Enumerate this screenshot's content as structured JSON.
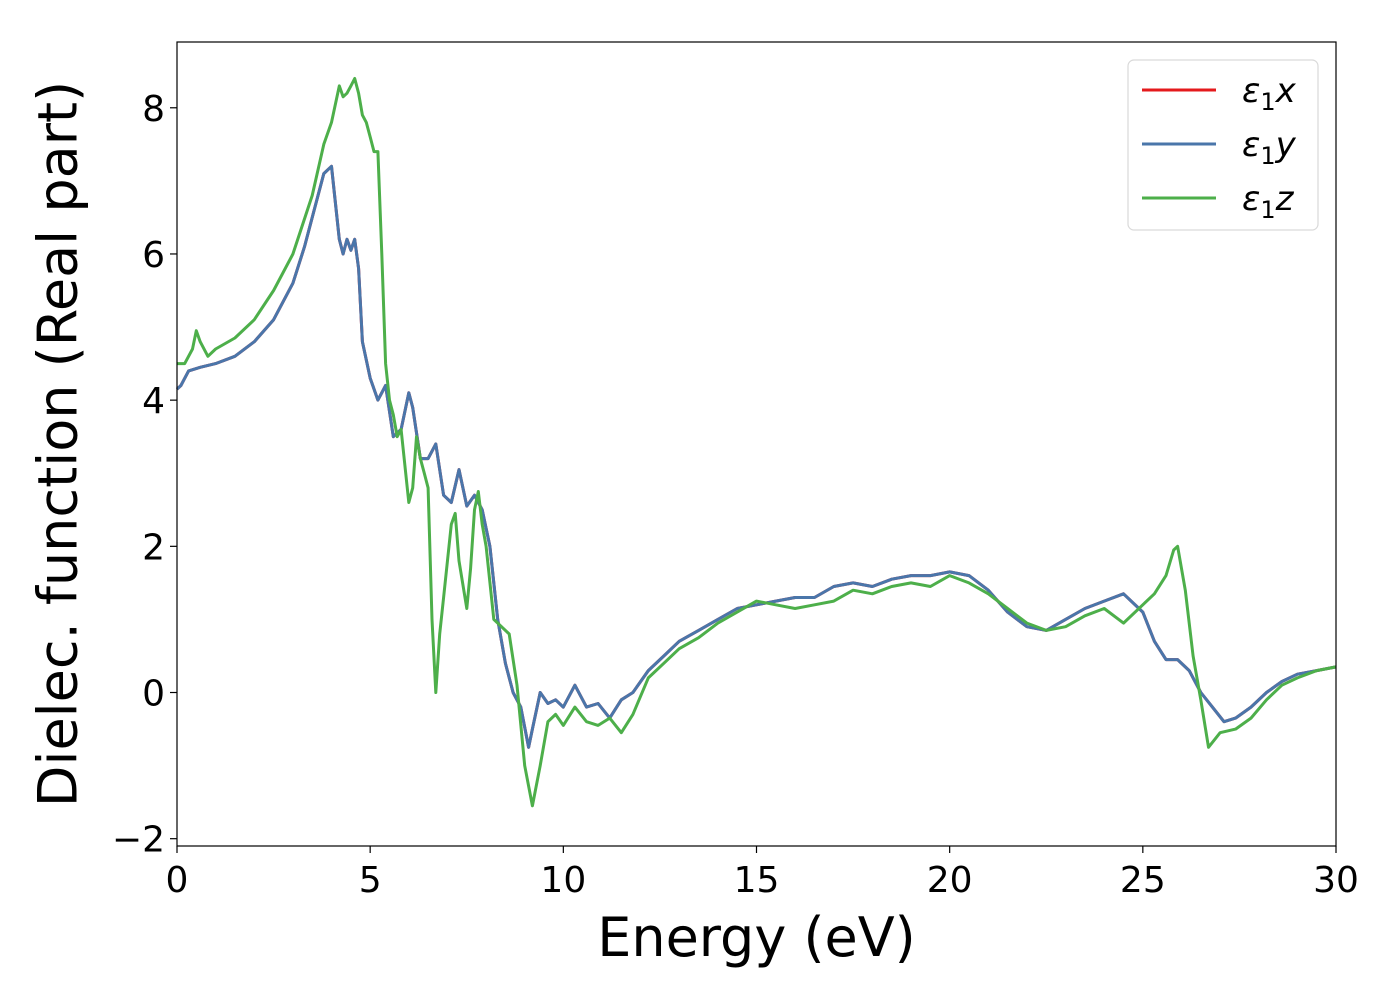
{
  "chart_data": {
    "type": "line",
    "title": "",
    "xlabel": "Energy (eV)",
    "ylabel": "Dielec. function (Real part)",
    "xlim": [
      0,
      30
    ],
    "ylim": [
      -2.1,
      8.9
    ],
    "xticks": [
      0,
      5,
      10,
      15,
      20,
      25,
      30
    ],
    "yticks": [
      -2,
      0,
      2,
      4,
      6,
      8
    ],
    "xtick_labels": [
      "0",
      "5",
      "10",
      "15",
      "20",
      "25",
      "30"
    ],
    "ytick_labels": [
      "−2",
      "0",
      "2",
      "4",
      "6",
      "8"
    ],
    "grid": false,
    "legend_position": "top-right",
    "series": [
      {
        "name": "ε",
        "subscript": "1",
        "suffix": "x",
        "color": "#e41a1c",
        "x": [
          0,
          0.1,
          0.3,
          0.6,
          1.0,
          1.5,
          2.0,
          2.5,
          3.0,
          3.3,
          3.6,
          3.8,
          4.0,
          4.1,
          4.2,
          4.3,
          4.4,
          4.5,
          4.6,
          4.7,
          4.8,
          5.0,
          5.2,
          5.4,
          5.6,
          5.8,
          6.0,
          6.1,
          6.3,
          6.5,
          6.7,
          6.9,
          7.1,
          7.3,
          7.5,
          7.7,
          7.9,
          8.1,
          8.3,
          8.5,
          8.7,
          8.9,
          9.1,
          9.2,
          9.4,
          9.6,
          9.8,
          10.0,
          10.3,
          10.6,
          10.9,
          11.2,
          11.5,
          11.8,
          12.2,
          12.6,
          13.0,
          13.5,
          14.0,
          14.5,
          15.0,
          15.5,
          16.0,
          16.5,
          17.0,
          17.5,
          18.0,
          18.5,
          19.0,
          19.5,
          20.0,
          20.5,
          21.0,
          21.5,
          22.0,
          22.5,
          23.0,
          23.5,
          24.0,
          24.5,
          25.0,
          25.3,
          25.6,
          25.9,
          26.2,
          26.5,
          26.8,
          27.1,
          27.4,
          27.8,
          28.2,
          28.6,
          29.0,
          29.5,
          30.0
        ],
        "y": [
          4.15,
          4.2,
          4.4,
          4.45,
          4.5,
          4.6,
          4.8,
          5.1,
          5.6,
          6.1,
          6.7,
          7.1,
          7.2,
          6.7,
          6.2,
          6.0,
          6.2,
          6.05,
          6.2,
          5.8,
          4.8,
          4.3,
          4.0,
          4.2,
          3.5,
          3.6,
          4.1,
          3.9,
          3.2,
          3.2,
          3.4,
          2.7,
          2.6,
          3.05,
          2.55,
          2.7,
          2.5,
          2.0,
          1.0,
          0.4,
          0.0,
          -0.2,
          -0.75,
          -0.5,
          0.0,
          -0.15,
          -0.1,
          -0.2,
          0.1,
          -0.2,
          -0.15,
          -0.35,
          -0.1,
          0.0,
          0.3,
          0.5,
          0.7,
          0.85,
          1.0,
          1.15,
          1.2,
          1.25,
          1.3,
          1.3,
          1.45,
          1.5,
          1.45,
          1.55,
          1.6,
          1.6,
          1.65,
          1.6,
          1.4,
          1.1,
          0.9,
          0.85,
          1.0,
          1.15,
          1.25,
          1.35,
          1.1,
          0.7,
          0.45,
          0.45,
          0.3,
          0.0,
          -0.2,
          -0.4,
          -0.35,
          -0.2,
          0.0,
          0.15,
          0.25,
          0.3,
          0.35
        ]
      },
      {
        "name": "ε",
        "subscript": "1",
        "suffix": "y",
        "color": "#4a76aa",
        "x": [
          0,
          0.1,
          0.3,
          0.6,
          1.0,
          1.5,
          2.0,
          2.5,
          3.0,
          3.3,
          3.6,
          3.8,
          4.0,
          4.1,
          4.2,
          4.3,
          4.4,
          4.5,
          4.6,
          4.7,
          4.8,
          5.0,
          5.2,
          5.4,
          5.6,
          5.8,
          6.0,
          6.1,
          6.3,
          6.5,
          6.7,
          6.9,
          7.1,
          7.3,
          7.5,
          7.7,
          7.9,
          8.1,
          8.3,
          8.5,
          8.7,
          8.9,
          9.1,
          9.2,
          9.4,
          9.6,
          9.8,
          10.0,
          10.3,
          10.6,
          10.9,
          11.2,
          11.5,
          11.8,
          12.2,
          12.6,
          13.0,
          13.5,
          14.0,
          14.5,
          15.0,
          15.5,
          16.0,
          16.5,
          17.0,
          17.5,
          18.0,
          18.5,
          19.0,
          19.5,
          20.0,
          20.5,
          21.0,
          21.5,
          22.0,
          22.5,
          23.0,
          23.5,
          24.0,
          24.5,
          25.0,
          25.3,
          25.6,
          25.9,
          26.2,
          26.5,
          26.8,
          27.1,
          27.4,
          27.8,
          28.2,
          28.6,
          29.0,
          29.5,
          30.0
        ],
        "y": [
          4.15,
          4.2,
          4.4,
          4.45,
          4.5,
          4.6,
          4.8,
          5.1,
          5.6,
          6.1,
          6.7,
          7.1,
          7.2,
          6.7,
          6.2,
          6.0,
          6.2,
          6.05,
          6.2,
          5.8,
          4.8,
          4.3,
          4.0,
          4.2,
          3.5,
          3.6,
          4.1,
          3.9,
          3.2,
          3.2,
          3.4,
          2.7,
          2.6,
          3.05,
          2.55,
          2.7,
          2.5,
          2.0,
          1.0,
          0.4,
          0.0,
          -0.2,
          -0.75,
          -0.5,
          0.0,
          -0.15,
          -0.1,
          -0.2,
          0.1,
          -0.2,
          -0.15,
          -0.35,
          -0.1,
          0.0,
          0.3,
          0.5,
          0.7,
          0.85,
          1.0,
          1.15,
          1.2,
          1.25,
          1.3,
          1.3,
          1.45,
          1.5,
          1.45,
          1.55,
          1.6,
          1.6,
          1.65,
          1.6,
          1.4,
          1.1,
          0.9,
          0.85,
          1.0,
          1.15,
          1.25,
          1.35,
          1.1,
          0.7,
          0.45,
          0.45,
          0.3,
          0.0,
          -0.2,
          -0.4,
          -0.35,
          -0.2,
          0.0,
          0.15,
          0.25,
          0.3,
          0.35
        ]
      },
      {
        "name": "ε",
        "subscript": "1",
        "suffix": "z",
        "color": "#4daf4a",
        "x": [
          0,
          0.2,
          0.4,
          0.5,
          0.6,
          0.8,
          1.0,
          1.5,
          2.0,
          2.5,
          3.0,
          3.5,
          3.8,
          4.0,
          4.2,
          4.3,
          4.4,
          4.5,
          4.6,
          4.7,
          4.8,
          4.9,
          5.0,
          5.1,
          5.2,
          5.3,
          5.4,
          5.5,
          5.6,
          5.7,
          5.8,
          6.0,
          6.1,
          6.2,
          6.3,
          6.4,
          6.5,
          6.6,
          6.7,
          6.8,
          6.9,
          7.1,
          7.2,
          7.3,
          7.5,
          7.6,
          7.7,
          7.8,
          7.9,
          8.0,
          8.2,
          8.4,
          8.6,
          8.8,
          9.0,
          9.2,
          9.4,
          9.6,
          9.8,
          10.0,
          10.3,
          10.6,
          10.9,
          11.2,
          11.5,
          11.8,
          12.2,
          12.6,
          13.0,
          13.5,
          14.0,
          14.5,
          15.0,
          15.5,
          16.0,
          16.5,
          17.0,
          17.5,
          18.0,
          18.5,
          19.0,
          19.5,
          20.0,
          20.5,
          21.0,
          21.5,
          22.0,
          22.5,
          23.0,
          23.5,
          24.0,
          24.5,
          25.0,
          25.3,
          25.6,
          25.8,
          25.9,
          26.1,
          26.3,
          26.5,
          26.7,
          27.0,
          27.4,
          27.8,
          28.2,
          28.6,
          29.0,
          29.5,
          30.0
        ],
        "y": [
          4.5,
          4.5,
          4.7,
          4.95,
          4.8,
          4.6,
          4.7,
          4.85,
          5.1,
          5.5,
          6.0,
          6.8,
          7.5,
          7.8,
          8.3,
          8.15,
          8.2,
          8.3,
          8.4,
          8.2,
          7.9,
          7.8,
          7.6,
          7.4,
          7.4,
          6.0,
          4.5,
          4.0,
          3.8,
          3.5,
          3.6,
          2.6,
          2.8,
          3.5,
          3.2,
          3.0,
          2.8,
          1.0,
          0.0,
          0.8,
          1.3,
          2.3,
          2.45,
          1.8,
          1.15,
          1.7,
          2.5,
          2.75,
          2.3,
          2.0,
          1.0,
          0.9,
          0.8,
          0.1,
          -1.0,
          -1.55,
          -1.0,
          -0.4,
          -0.3,
          -0.45,
          -0.2,
          -0.4,
          -0.45,
          -0.35,
          -0.55,
          -0.3,
          0.2,
          0.4,
          0.6,
          0.75,
          0.95,
          1.1,
          1.25,
          1.2,
          1.15,
          1.2,
          1.25,
          1.4,
          1.35,
          1.45,
          1.5,
          1.45,
          1.6,
          1.5,
          1.35,
          1.15,
          0.95,
          0.85,
          0.9,
          1.05,
          1.15,
          0.95,
          1.2,
          1.35,
          1.6,
          1.95,
          2.0,
          1.4,
          0.5,
          -0.1,
          -0.75,
          -0.55,
          -0.5,
          -0.35,
          -0.1,
          0.1,
          0.2,
          0.3,
          0.35
        ]
      }
    ]
  }
}
